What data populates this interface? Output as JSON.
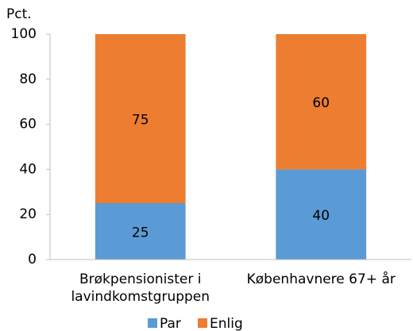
{
  "chart_data": {
    "type": "stacked_bar",
    "y_axis_label": "Pct.",
    "categories": [
      "Brøkpensionister i lavindkomstgruppen",
      "Københavnere 67+ år"
    ],
    "series": [
      {
        "name": "Par",
        "color": "#5b9bd5",
        "values": [
          25,
          40
        ]
      },
      {
        "name": "Enlig",
        "color": "#ed7d31",
        "values": [
          75,
          60
        ]
      }
    ],
    "ylim": [
      0,
      100
    ],
    "yticks": [
      0,
      20,
      40,
      60,
      80,
      100
    ],
    "grid": false,
    "legend": "bottom"
  }
}
